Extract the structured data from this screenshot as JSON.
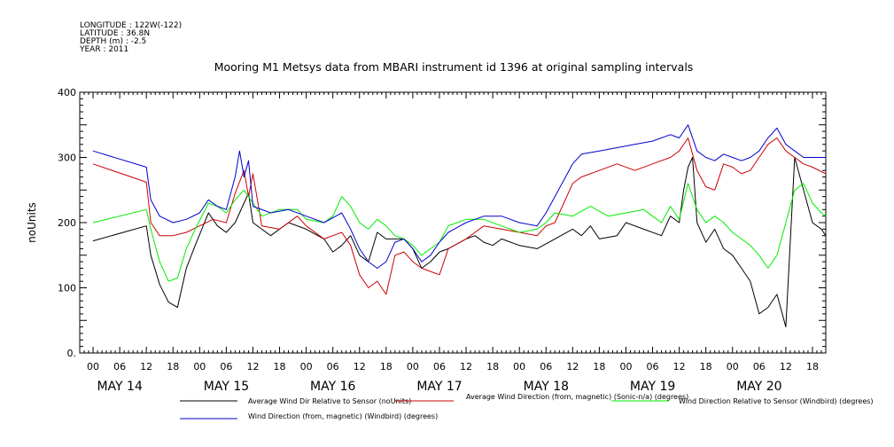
{
  "header": {
    "longitude": "LONGITUDE : 122W(-122)",
    "latitude": "LATITUDE : 36.8N",
    "depth": "DEPTH (m) : -2.5",
    "year": "YEAR : 2011"
  },
  "chart_data": {
    "type": "line",
    "title": "Mooring M1 Metsys data from MBARI instrument id 1396 at original sampling intervals",
    "xlabel": "",
    "ylabel": "noUnits",
    "ylim": [
      0,
      400
    ],
    "yticks": [
      "0.",
      "100",
      "200",
      "300",
      "400"
    ],
    "xlim_hours": [
      -3,
      165
    ],
    "x_hour_ticks": [
      "00",
      "06",
      "12",
      "18",
      "00",
      "06",
      "12",
      "18",
      "00",
      "06",
      "12",
      "18",
      "00",
      "06",
      "12",
      "18",
      "00",
      "06",
      "12",
      "18",
      "00",
      "06",
      "12",
      "18",
      "00",
      "06",
      "12",
      "18"
    ],
    "day_labels": [
      "MAY 14",
      "MAY 15",
      "MAY 16",
      "MAY 17",
      "MAY 18",
      "MAY 19",
      "MAY 20"
    ],
    "grid": false,
    "legend_position": "bottom",
    "series": [
      {
        "name": "Average Wind Dir Relative to Sensor (noUnits)",
        "color": "#000000",
        "points": [
          [
            0,
            172
          ],
          [
            12,
            195
          ],
          [
            13,
            150
          ],
          [
            15,
            105
          ],
          [
            17,
            78
          ],
          [
            19,
            70
          ],
          [
            21,
            130
          ],
          [
            23,
            165
          ],
          [
            26,
            215
          ],
          [
            28,
            195
          ],
          [
            30,
            185
          ],
          [
            32,
            200
          ],
          [
            34,
            230
          ],
          [
            35,
            245
          ],
          [
            36,
            200
          ],
          [
            38,
            190
          ],
          [
            40,
            180
          ],
          [
            44,
            200
          ],
          [
            48,
            190
          ],
          [
            52,
            175
          ],
          [
            54,
            155
          ],
          [
            56,
            165
          ],
          [
            58,
            180
          ],
          [
            60,
            150
          ],
          [
            62,
            140
          ],
          [
            64,
            185
          ],
          [
            66,
            175
          ],
          [
            70,
            175
          ],
          [
            72,
            160
          ],
          [
            74,
            130
          ],
          [
            76,
            140
          ],
          [
            78,
            155
          ],
          [
            80,
            160
          ],
          [
            84,
            175
          ],
          [
            86,
            180
          ],
          [
            88,
            170
          ],
          [
            90,
            165
          ],
          [
            92,
            175
          ],
          [
            96,
            165
          ],
          [
            100,
            160
          ],
          [
            104,
            175
          ],
          [
            108,
            190
          ],
          [
            110,
            180
          ],
          [
            112,
            195
          ],
          [
            114,
            175
          ],
          [
            118,
            180
          ],
          [
            120,
            200
          ],
          [
            124,
            190
          ],
          [
            128,
            180
          ],
          [
            130,
            210
          ],
          [
            132,
            200
          ],
          [
            133,
            250
          ],
          [
            134,
            285
          ],
          [
            135,
            300
          ],
          [
            136,
            200
          ],
          [
            138,
            170
          ],
          [
            140,
            190
          ],
          [
            142,
            160
          ],
          [
            144,
            150
          ],
          [
            146,
            130
          ],
          [
            148,
            110
          ],
          [
            150,
            60
          ],
          [
            152,
            70
          ],
          [
            154,
            90
          ],
          [
            156,
            40
          ],
          [
            158,
            300
          ],
          [
            160,
            250
          ],
          [
            162,
            200
          ],
          [
            164,
            190
          ],
          [
            165,
            180
          ]
        ]
      },
      {
        "name": "Average Wind Direction (from, magnetic) (Sonic-n/a) (degrees)",
        "color": "#cc0000",
        "points": [
          [
            0,
            290
          ],
          [
            12,
            262
          ],
          [
            13,
            200
          ],
          [
            15,
            180
          ],
          [
            18,
            180
          ],
          [
            21,
            185
          ],
          [
            24,
            195
          ],
          [
            27,
            205
          ],
          [
            30,
            200
          ],
          [
            32,
            245
          ],
          [
            34,
            280
          ],
          [
            35,
            240
          ],
          [
            36,
            275
          ],
          [
            38,
            195
          ],
          [
            42,
            190
          ],
          [
            46,
            210
          ],
          [
            48,
            195
          ],
          [
            52,
            175
          ],
          [
            56,
            185
          ],
          [
            58,
            165
          ],
          [
            60,
            120
          ],
          [
            62,
            100
          ],
          [
            64,
            110
          ],
          [
            66,
            90
          ],
          [
            68,
            150
          ],
          [
            70,
            155
          ],
          [
            72,
            140
          ],
          [
            74,
            130
          ],
          [
            76,
            125
          ],
          [
            78,
            120
          ],
          [
            80,
            160
          ],
          [
            84,
            175
          ],
          [
            88,
            195
          ],
          [
            92,
            190
          ],
          [
            96,
            185
          ],
          [
            100,
            180
          ],
          [
            102,
            195
          ],
          [
            104,
            200
          ],
          [
            106,
            230
          ],
          [
            108,
            260
          ],
          [
            110,
            270
          ],
          [
            114,
            280
          ],
          [
            118,
            290
          ],
          [
            122,
            280
          ],
          [
            126,
            290
          ],
          [
            130,
            300
          ],
          [
            132,
            310
          ],
          [
            134,
            330
          ],
          [
            136,
            280
          ],
          [
            138,
            255
          ],
          [
            140,
            250
          ],
          [
            142,
            290
          ],
          [
            144,
            285
          ],
          [
            146,
            275
          ],
          [
            148,
            280
          ],
          [
            150,
            300
          ],
          [
            152,
            320
          ],
          [
            154,
            330
          ],
          [
            156,
            310
          ],
          [
            158,
            300
          ],
          [
            160,
            290
          ],
          [
            162,
            285
          ],
          [
            165,
            275
          ]
        ]
      },
      {
        "name": "Wind Direction Relative to Sensor (Windbird) (degrees)",
        "color": "#00ee00",
        "points": [
          [
            0,
            200
          ],
          [
            12,
            220
          ],
          [
            13,
            190
          ],
          [
            15,
            140
          ],
          [
            17,
            110
          ],
          [
            19,
            115
          ],
          [
            21,
            160
          ],
          [
            23,
            190
          ],
          [
            26,
            230
          ],
          [
            28,
            225
          ],
          [
            30,
            215
          ],
          [
            32,
            235
          ],
          [
            34,
            250
          ],
          [
            36,
            230
          ],
          [
            38,
            210
          ],
          [
            42,
            220
          ],
          [
            46,
            220
          ],
          [
            48,
            205
          ],
          [
            52,
            200
          ],
          [
            54,
            210
          ],
          [
            56,
            240
          ],
          [
            58,
            225
          ],
          [
            60,
            200
          ],
          [
            62,
            190
          ],
          [
            64,
            205
          ],
          [
            66,
            195
          ],
          [
            68,
            180
          ],
          [
            70,
            175
          ],
          [
            72,
            165
          ],
          [
            74,
            150
          ],
          [
            76,
            160
          ],
          [
            78,
            170
          ],
          [
            80,
            195
          ],
          [
            84,
            205
          ],
          [
            88,
            205
          ],
          [
            92,
            195
          ],
          [
            96,
            185
          ],
          [
            100,
            190
          ],
          [
            102,
            200
          ],
          [
            104,
            215
          ],
          [
            108,
            210
          ],
          [
            112,
            225
          ],
          [
            116,
            210
          ],
          [
            120,
            215
          ],
          [
            124,
            220
          ],
          [
            126,
            210
          ],
          [
            128,
            200
          ],
          [
            130,
            225
          ],
          [
            132,
            205
          ],
          [
            134,
            260
          ],
          [
            136,
            220
          ],
          [
            138,
            200
          ],
          [
            140,
            210
          ],
          [
            142,
            200
          ],
          [
            144,
            185
          ],
          [
            146,
            175
          ],
          [
            148,
            165
          ],
          [
            150,
            150
          ],
          [
            152,
            130
          ],
          [
            154,
            150
          ],
          [
            156,
            200
          ],
          [
            158,
            250
          ],
          [
            160,
            260
          ],
          [
            162,
            230
          ],
          [
            164,
            215
          ],
          [
            165,
            210
          ]
        ]
      },
      {
        "name": "Wind Direction (from, magnetic) (Windbird) (degrees)",
        "color": "#0000cc",
        "points": [
          [
            0,
            310
          ],
          [
            12,
            285
          ],
          [
            13,
            235
          ],
          [
            15,
            210
          ],
          [
            18,
            200
          ],
          [
            21,
            205
          ],
          [
            24,
            215
          ],
          [
            26,
            235
          ],
          [
            28,
            225
          ],
          [
            30,
            220
          ],
          [
            32,
            270
          ],
          [
            33,
            310
          ],
          [
            34,
            270
          ],
          [
            35,
            295
          ],
          [
            36,
            225
          ],
          [
            40,
            215
          ],
          [
            44,
            220
          ],
          [
            48,
            210
          ],
          [
            52,
            200
          ],
          [
            56,
            215
          ],
          [
            58,
            190
          ],
          [
            60,
            160
          ],
          [
            62,
            140
          ],
          [
            64,
            130
          ],
          [
            66,
            140
          ],
          [
            68,
            170
          ],
          [
            70,
            175
          ],
          [
            72,
            160
          ],
          [
            74,
            140
          ],
          [
            76,
            150
          ],
          [
            78,
            170
          ],
          [
            80,
            185
          ],
          [
            84,
            200
          ],
          [
            88,
            210
          ],
          [
            92,
            210
          ],
          [
            96,
            200
          ],
          [
            100,
            195
          ],
          [
            102,
            215
          ],
          [
            104,
            240
          ],
          [
            106,
            265
          ],
          [
            108,
            290
          ],
          [
            110,
            305
          ],
          [
            114,
            310
          ],
          [
            118,
            315
          ],
          [
            122,
            320
          ],
          [
            126,
            325
          ],
          [
            130,
            335
          ],
          [
            132,
            330
          ],
          [
            134,
            350
          ],
          [
            136,
            310
          ],
          [
            138,
            300
          ],
          [
            140,
            295
          ],
          [
            142,
            305
          ],
          [
            144,
            300
          ],
          [
            146,
            295
          ],
          [
            148,
            300
          ],
          [
            150,
            310
          ],
          [
            152,
            330
          ],
          [
            154,
            345
          ],
          [
            156,
            320
          ],
          [
            158,
            310
          ],
          [
            160,
            300
          ],
          [
            162,
            300
          ],
          [
            165,
            300
          ]
        ]
      }
    ]
  }
}
